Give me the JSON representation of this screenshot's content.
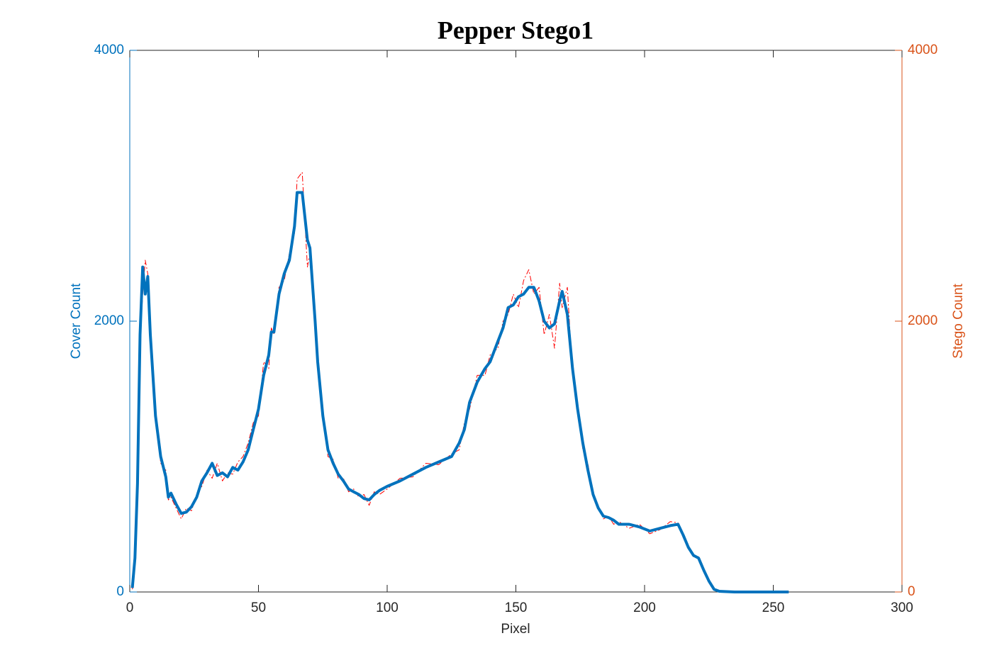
{
  "chart_data": {
    "type": "line",
    "title": "Pepper Stego1",
    "xlabel": "Pixel",
    "ylabel": "Cover Count",
    "y2label": "Stego Count",
    "x": [
      1,
      2,
      3,
      4,
      5,
      6,
      7,
      8,
      10,
      12,
      14,
      15,
      16,
      18,
      20,
      22,
      24,
      26,
      28,
      30,
      32,
      34,
      36,
      38,
      40,
      42,
      44,
      46,
      48,
      50,
      52,
      54,
      55,
      56,
      58,
      60,
      62,
      64,
      65,
      67,
      69,
      70,
      72,
      73,
      75,
      77,
      79,
      81,
      83,
      85,
      87,
      89,
      91,
      93,
      95,
      97,
      100,
      105,
      110,
      115,
      120,
      125,
      128,
      130,
      132,
      135,
      138,
      140,
      143,
      145,
      147,
      149,
      151,
      153,
      155,
      157,
      159,
      161,
      163,
      165,
      167,
      168,
      170,
      172,
      174,
      176,
      178,
      180,
      182,
      184,
      186,
      188,
      190,
      194,
      198,
      202,
      206,
      210,
      213,
      215,
      217,
      219,
      221,
      223,
      225,
      227,
      229,
      235,
      256
    ],
    "series": [
      {
        "name": "Cover",
        "color": "#0072BD",
        "axis": "y",
        "values": [
          30,
          250,
          800,
          1900,
          2400,
          2200,
          2330,
          1900,
          1300,
          1000,
          850,
          700,
          730,
          650,
          580,
          590,
          630,
          700,
          820,
          880,
          950,
          860,
          880,
          850,
          920,
          900,
          960,
          1050,
          1200,
          1350,
          1600,
          1750,
          1920,
          1920,
          2200,
          2350,
          2450,
          2700,
          2950,
          2950,
          2600,
          2540,
          2000,
          1700,
          1300,
          1050,
          950,
          870,
          820,
          760,
          740,
          720,
          690,
          680,
          720,
          750,
          780,
          820,
          870,
          920,
          960,
          1000,
          1100,
          1200,
          1400,
          1550,
          1650,
          1700,
          1850,
          1950,
          2100,
          2120,
          2180,
          2200,
          2250,
          2250,
          2150,
          2000,
          1950,
          1980,
          2150,
          2220,
          2050,
          1650,
          1350,
          1100,
          900,
          720,
          620,
          560,
          550,
          530,
          500,
          500,
          480,
          450,
          470,
          490,
          500,
          420,
          330,
          270,
          250,
          160,
          80,
          20,
          5,
          0,
          0
        ]
      },
      {
        "name": "Stego",
        "color": "#FF0000",
        "axis": "y2",
        "values": [
          20,
          200,
          700,
          1800,
          2200,
          2450,
          2350,
          2000,
          1350,
          950,
          900,
          680,
          700,
          620,
          540,
          620,
          600,
          720,
          780,
          900,
          840,
          950,
          820,
          880,
          870,
          960,
          1000,
          1100,
          1250,
          1300,
          1700,
          1650,
          1950,
          1900,
          2250,
          2300,
          2500,
          2650,
          3050,
          3100,
          2400,
          2500,
          2100,
          1650,
          1350,
          1000,
          980,
          840,
          840,
          740,
          760,
          700,
          720,
          640,
          740,
          720,
          760,
          840,
          850,
          950,
          940,
          1020,
          1050,
          1250,
          1350,
          1600,
          1600,
          1750,
          1800,
          2000,
          2050,
          2200,
          2100,
          2300,
          2380,
          2200,
          2250,
          1900,
          2050,
          1800,
          2280,
          2100,
          2250,
          1600,
          1400,
          1050,
          950,
          700,
          640,
          540,
          560,
          500,
          520,
          470,
          500,
          430,
          460,
          520,
          510,
          400,
          340,
          260,
          260,
          150,
          90,
          15,
          5,
          0,
          0
        ]
      }
    ],
    "xlim": [
      0,
      300
    ],
    "xticks": [
      0,
      50,
      100,
      150,
      200,
      250,
      300
    ],
    "ylim": [
      0,
      4000
    ],
    "yticks": [
      0,
      2000,
      4000
    ],
    "y2lim": [
      0,
      4000
    ],
    "y2ticks": [
      0,
      2000,
      4000
    ],
    "left_axis_color": "#0072BD",
    "right_axis_color": "#D95319"
  }
}
